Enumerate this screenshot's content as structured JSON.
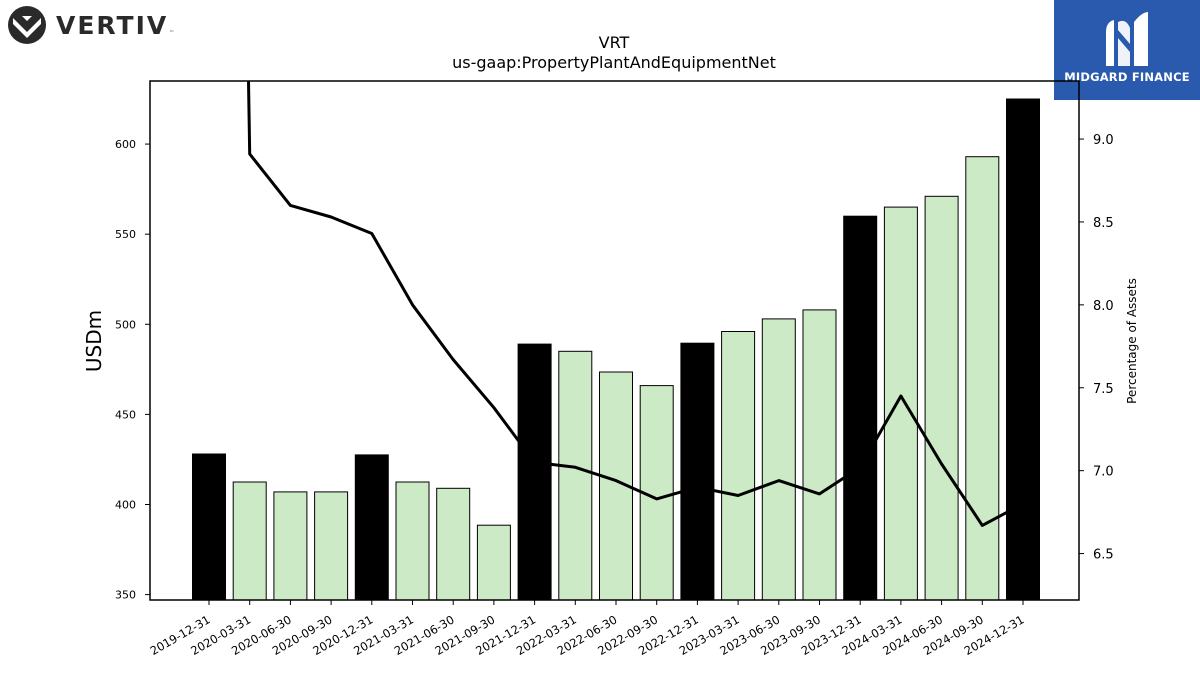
{
  "branding": {
    "left_logo": "VERTIV",
    "left_logo_tm": "™",
    "right_logo": "MIDGARD FINANCE",
    "left_icon": "vertiv-chevron-icon",
    "right_icon": "midgard-m-icon",
    "right_bg": "#2a5aad"
  },
  "chart_data": {
    "type": "bar",
    "title": "VRT",
    "subtitle": "us-gaap:PropertyPlantAndEquipmentNet",
    "ylabel": "USDm",
    "y2label": "Percentage of Assets",
    "ylim": [
      347,
      635
    ],
    "y2lim": [
      6.22,
      9.35
    ],
    "yticks": [
      350,
      400,
      450,
      500,
      550,
      600
    ],
    "y2ticks": [
      "6.5",
      "7.0",
      "7.5",
      "8.0",
      "8.5",
      "9.0"
    ],
    "categories": [
      "2019-12-31",
      "2020-03-31",
      "2020-06-30",
      "2020-09-30",
      "2020-12-31",
      "2021-03-31",
      "2021-06-30",
      "2021-09-30",
      "2021-12-31",
      "2022-03-31",
      "2022-06-30",
      "2022-09-30",
      "2022-12-31",
      "2023-03-31",
      "2023-06-30",
      "2023-09-30",
      "2023-12-31",
      "2024-03-31",
      "2024-06-30",
      "2024-09-30",
      "2024-12-31"
    ],
    "series": [
      {
        "kind": "bar",
        "values": [
          428,
          412.5,
          407,
          407,
          427.5,
          412.5,
          409,
          388.5,
          489,
          485,
          473.5,
          466,
          489.5,
          496,
          503,
          508,
          560,
          565,
          571,
          593,
          625
        ],
        "colors": [
          "#000000",
          "#cdeac7",
          "#cdeac7",
          "#cdeac7",
          "#000000",
          "#cdeac7",
          "#cdeac7",
          "#cdeac7",
          "#000000",
          "#cdeac7",
          "#cdeac7",
          "#cdeac7",
          "#000000",
          "#cdeac7",
          "#cdeac7",
          "#cdeac7",
          "#000000",
          "#cdeac7",
          "#cdeac7",
          "#cdeac7",
          "#000000"
        ]
      },
      {
        "kind": "line",
        "axis": "right",
        "start": [
          0.97,
          9.35
        ],
        "values": [
          null,
          8.91,
          8.6,
          8.53,
          8.43,
          8.0,
          7.67,
          7.38,
          7.05,
          7.02,
          6.94,
          6.83,
          6.9,
          6.85,
          6.94,
          6.86,
          7.02,
          7.45,
          7.04,
          6.67,
          6.8
        ],
        "color": "#000000"
      }
    ],
    "grid": false
  }
}
